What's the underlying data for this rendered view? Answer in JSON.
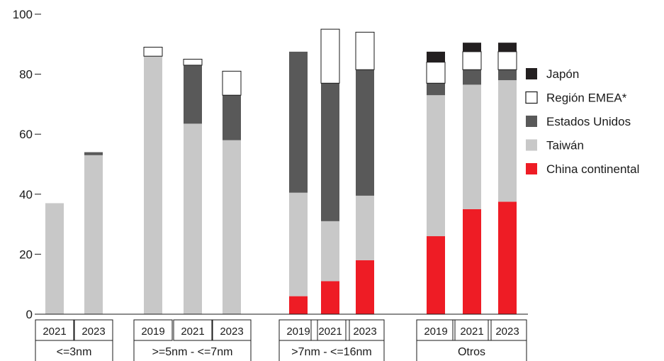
{
  "chart_data": {
    "type": "bar",
    "stacked": true,
    "title": "",
    "xlabel": "",
    "ylabel": "",
    "ylim": [
      0,
      100
    ],
    "yticks": [
      0,
      20,
      40,
      60,
      80,
      100
    ],
    "legend_position": "right",
    "groups": [
      {
        "label": "<=3nm",
        "years": [
          "2021",
          "2023"
        ]
      },
      {
        "label": ">=5nm - <=7nm",
        "years": [
          "2019",
          "2021",
          "2023"
        ]
      },
      {
        "label": ">7nm - <=16nm",
        "years": [
          "2019",
          "2021",
          "2023"
        ]
      },
      {
        "label": "Otros",
        "years": [
          "2019",
          "2021",
          "2023"
        ]
      }
    ],
    "categories": [
      "<=3nm 2021",
      "<=3nm 2023",
      ">=5nm - <=7nm 2019",
      ">=5nm - <=7nm 2021",
      ">=5nm - <=7nm 2023",
      ">7nm - <=16nm 2019",
      ">7nm - <=16nm 2021",
      ">7nm - <=16nm 2023",
      "Otros 2019",
      "Otros 2021",
      "Otros 2023"
    ],
    "series": [
      {
        "name": "China continental",
        "color": "#ee1c25",
        "values": [
          0,
          0,
          0,
          0,
          0,
          6,
          11,
          18,
          26,
          35,
          37.5
        ]
      },
      {
        "name": "Taiwán",
        "color": "#c8c8c8",
        "values": [
          37,
          53,
          86,
          63.5,
          58,
          34.5,
          20,
          21.5,
          47,
          41.5,
          40.5
        ]
      },
      {
        "name": "Estados Unidos",
        "color": "#595959",
        "values": [
          0,
          1,
          0,
          19.5,
          15,
          47,
          46,
          42,
          4,
          5,
          3.5
        ]
      },
      {
        "name": "Región EMEA*",
        "color": "#ffffff",
        "values": [
          0,
          0,
          3,
          2,
          8,
          0,
          18,
          12.5,
          7,
          6,
          6
        ]
      },
      {
        "name": "Japón",
        "color": "#231f20",
        "values": [
          0,
          0,
          0,
          0,
          0,
          0,
          0,
          0,
          3.5,
          3,
          3
        ]
      }
    ],
    "legend_order": [
      "Japón",
      "Región EMEA*",
      "Estados Unidos",
      "Taiwán",
      "China continental"
    ]
  }
}
